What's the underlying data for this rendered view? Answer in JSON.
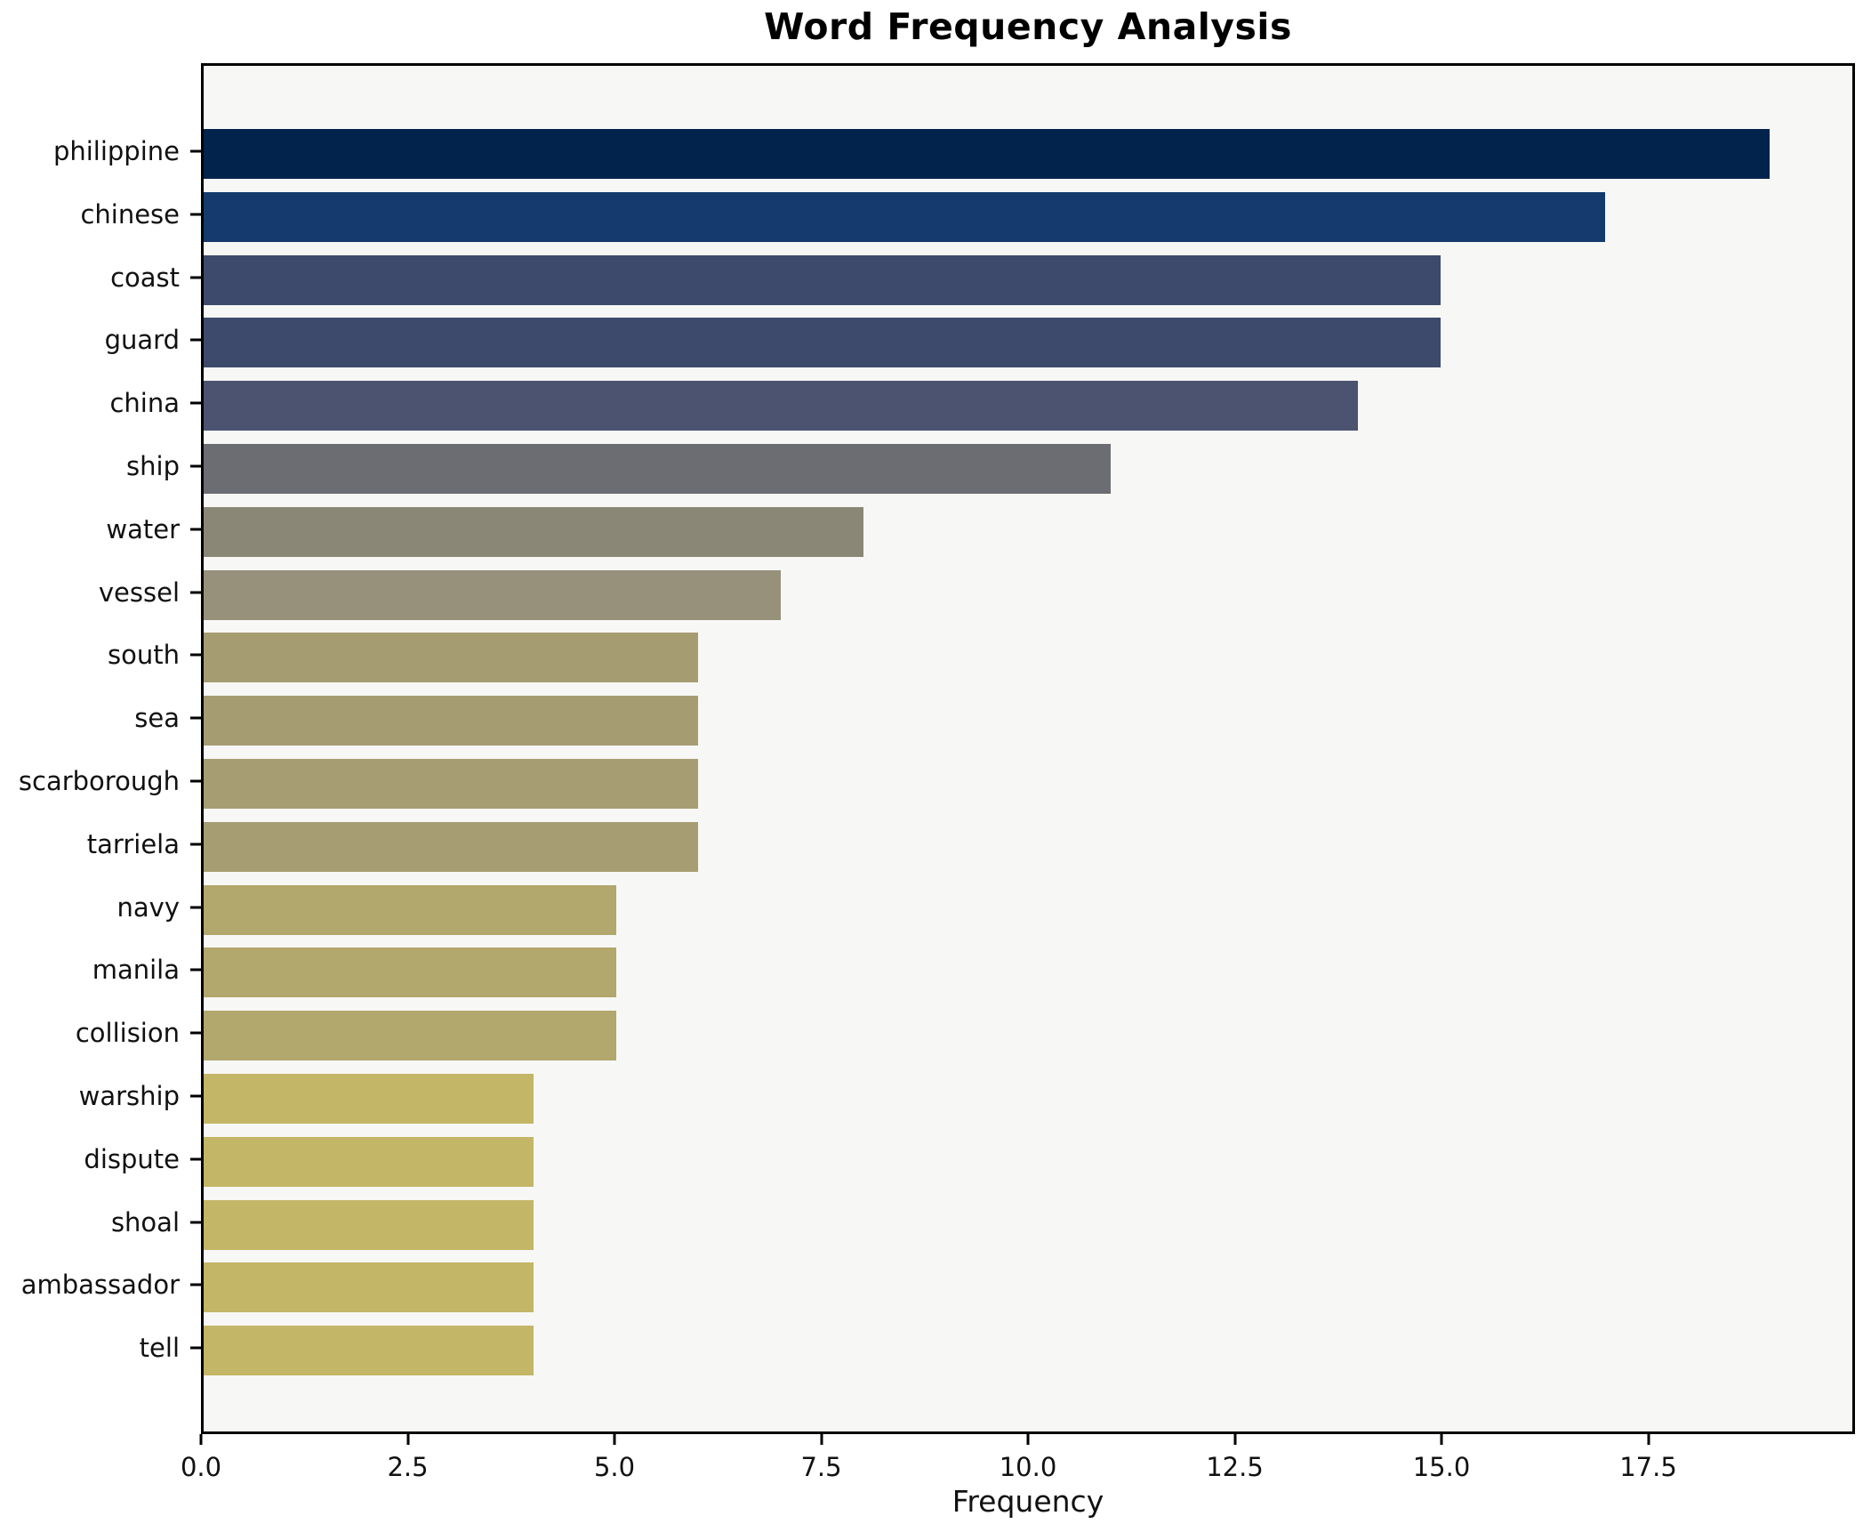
{
  "chart_data": {
    "type": "bar",
    "orientation": "horizontal",
    "title": "Word Frequency Analysis",
    "xlabel": "Frequency",
    "ylabel": "",
    "categories": [
      "philippine",
      "chinese",
      "coast",
      "guard",
      "china",
      "ship",
      "water",
      "vessel",
      "south",
      "sea",
      "scarborough",
      "tarriela",
      "navy",
      "manila",
      "collision",
      "warship",
      "dispute",
      "shoal",
      "ambassador",
      "tell"
    ],
    "values": [
      19,
      17,
      15,
      15,
      14,
      11,
      8,
      7,
      6,
      6,
      6,
      6,
      5,
      5,
      5,
      4,
      4,
      4,
      4,
      4
    ],
    "bar_colors": [
      "#02234c",
      "#143a6e",
      "#3d4a6c",
      "#3d4a6c",
      "#4b5371",
      "#6c6d73",
      "#8b8777",
      "#97917b",
      "#a59c72",
      "#a59c72",
      "#a69e72",
      "#a69e72",
      "#b2a76c",
      "#b2a76c",
      "#b2a76c",
      "#c3b666",
      "#c3b666",
      "#c3b666",
      "#c3b666",
      "#c3b666"
    ],
    "x_ticks": [
      {
        "label": "0.0",
        "value": 0
      },
      {
        "label": "2.5",
        "value": 2.5
      },
      {
        "label": "5.0",
        "value": 5
      },
      {
        "label": "7.5",
        "value": 7.5
      },
      {
        "label": "10.0",
        "value": 10
      },
      {
        "label": "12.5",
        "value": 12.5
      },
      {
        "label": "15.0",
        "value": 15
      },
      {
        "label": "17.5",
        "value": 17.5
      }
    ],
    "xlim": [
      0,
      20
    ],
    "grid": false,
    "legend": null,
    "plot_bg_color": "#f7f7f5",
    "figure_bg_color": "#ffffff",
    "spine_color": "#000000"
  }
}
